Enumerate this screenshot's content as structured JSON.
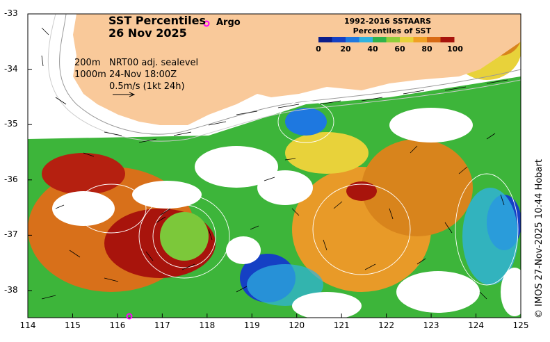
{
  "title": {
    "line1": "SST Percentiles",
    "line2": "26 Nov 2025"
  },
  "argo_label": "Argo",
  "legend": {
    "title_line1": "1992-2016 SSTAARS",
    "title_line2": "Percentiles of SST",
    "ticks": [
      "0",
      "20",
      "40",
      "60",
      "80",
      "100"
    ],
    "colors": [
      "#0b1d8a",
      "#1540c4",
      "#1e78e0",
      "#2fb3e0",
      "#2fb34a",
      "#8fcf3a",
      "#e8d23a",
      "#f0a024",
      "#d86a14",
      "#a8140c"
    ]
  },
  "info": {
    "depth_200": "200m",
    "depth_1000": "1000m",
    "model": "NRT00 adj. sealevel",
    "time": "24-Nov 18:00Z",
    "scale": "0.5m/s (1kt 24h)"
  },
  "credit": "© IMOS 27-Nov-2025 10:44 Hobart",
  "axes": {
    "lat_labels": [
      "-33",
      "-34",
      "-35",
      "-36",
      "-37",
      "-38"
    ],
    "lon_labels": [
      "114",
      "115",
      "116",
      "117",
      "118",
      "119",
      "120",
      "121",
      "122",
      "123",
      "124",
      "125"
    ]
  },
  "colors": {
    "land": "#f9c99a",
    "argo": "#ff00ff",
    "no_data": "#ffffff"
  }
}
